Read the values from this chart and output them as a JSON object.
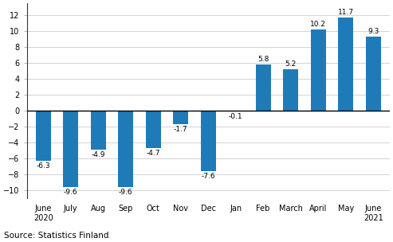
{
  "categories": [
    "June\n2020",
    "July",
    "Aug",
    "Sep",
    "Oct",
    "Nov",
    "Dec",
    "Jan",
    "Feb",
    "March",
    "April",
    "May",
    "June\n2021"
  ],
  "values": [
    -6.3,
    -9.6,
    -4.9,
    -9.6,
    -4.7,
    -1.7,
    -7.6,
    -0.1,
    5.8,
    5.2,
    10.2,
    11.7,
    9.3
  ],
  "bar_color": "#1f7bb8",
  "ylim": [
    -11,
    13.5
  ],
  "yticks": [
    -10,
    -8,
    -6,
    -4,
    -2,
    0,
    2,
    4,
    6,
    8,
    10,
    12
  ],
  "source_text": "Source: Statistics Finland",
  "background_color": "#ffffff",
  "label_fontsize": 6.5,
  "tick_fontsize": 7.0,
  "source_fontsize": 7.5,
  "bar_width": 0.55
}
